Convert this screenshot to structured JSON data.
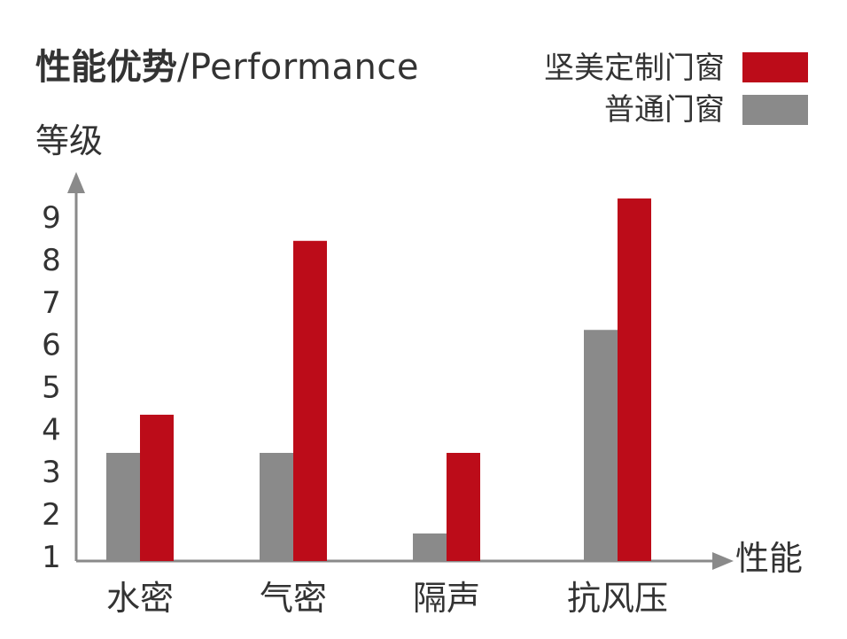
{
  "title": {
    "cn": "性能优势",
    "en": "/Performance"
  },
  "chart_data": {
    "type": "bar",
    "ylabel": "等级",
    "xlabel": "性能",
    "yticks": [
      "1",
      "2",
      "3",
      "4",
      "5",
      "6",
      "7",
      "8",
      "9"
    ],
    "ylim": [
      0.85,
      9.9
    ],
    "categories": [
      "水密",
      "气密",
      "隔声",
      "抗风压"
    ],
    "series": [
      {
        "name": "普通门窗",
        "color": "#8a8a8a",
        "values": [
          3.4,
          3.4,
          1.5,
          6.3
        ]
      },
      {
        "name": "坚美定制门窗",
        "color": "#bc0c19",
        "values": [
          4.3,
          8.4,
          3.4,
          9.4
        ]
      }
    ],
    "legend_position": "top-right",
    "grid": false,
    "axis_color": "#8a8a8a"
  }
}
